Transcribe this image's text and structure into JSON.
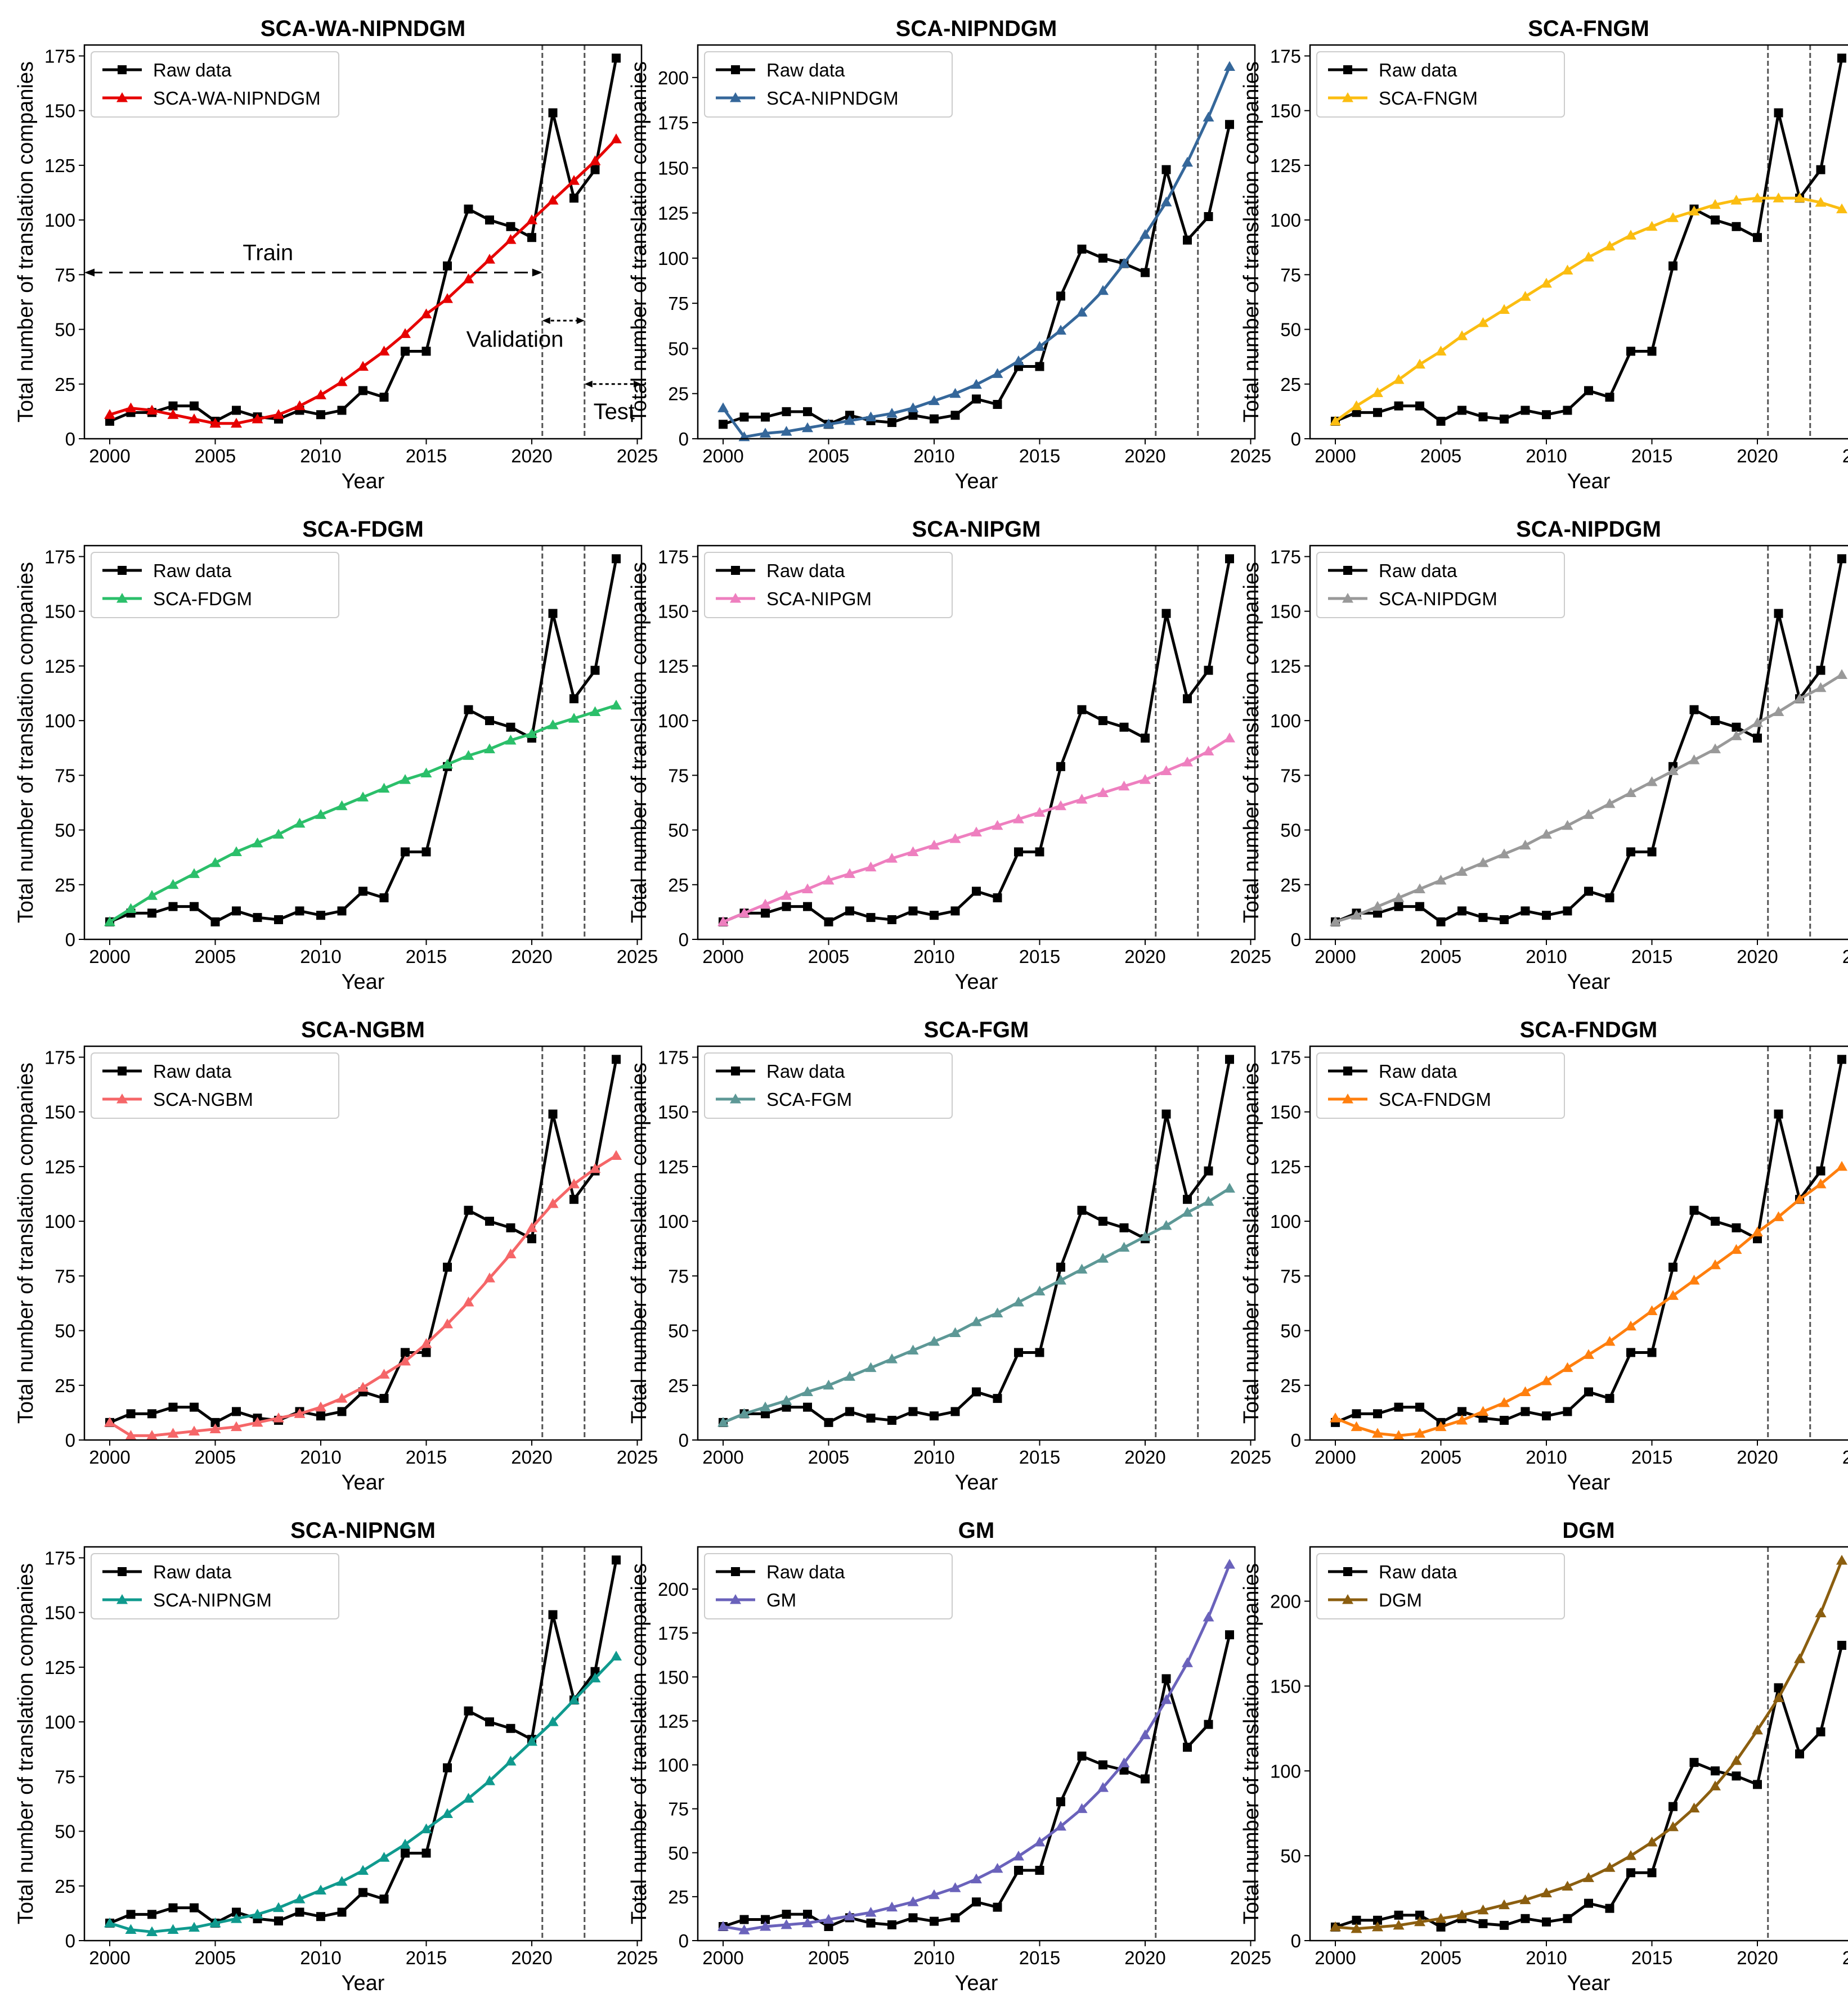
{
  "figure": {
    "xlabel": "Year",
    "ylabel": "Total number of translation companies",
    "years": [
      2000,
      2001,
      2002,
      2003,
      2004,
      2005,
      2006,
      2007,
      2008,
      2009,
      2010,
      2011,
      2012,
      2013,
      2014,
      2015,
      2016,
      2017,
      2018,
      2019,
      2020,
      2021,
      2022,
      2023,
      2024
    ],
    "raw_label": "Raw data",
    "raw_values": [
      8,
      12,
      12,
      15,
      15,
      8,
      13,
      10,
      9,
      13,
      11,
      13,
      22,
      19,
      40,
      40,
      79,
      105,
      100,
      97,
      92,
      149,
      110,
      123,
      174
    ],
    "x_ticks": [
      2000,
      2005,
      2010,
      2015,
      2020,
      2025
    ],
    "annotations": {
      "train": "Train",
      "validation": "Validation",
      "test": "Test"
    }
  },
  "chart_data": [
    {
      "type": "line",
      "title": "SCA-WA-NIPNDGM",
      "legend": "SCA-WA-NIPNDGM",
      "color": "#e60000",
      "ylim": [
        0,
        180
      ],
      "yticks": [
        0,
        25,
        50,
        75,
        100,
        125,
        150,
        175
      ],
      "vlines": [
        2020.5,
        2022.5
      ],
      "annotated": true,
      "values": [
        11,
        14,
        13,
        11,
        9,
        7,
        7,
        9,
        11,
        15,
        20,
        26,
        33,
        40,
        48,
        57,
        64,
        73,
        82,
        91,
        100,
        109,
        118,
        127,
        137
      ]
    },
    {
      "type": "line",
      "title": "SCA-NIPNDGM",
      "legend": "SCA-NIPNDGM",
      "color": "#35679a",
      "ylim": [
        0,
        218
      ],
      "yticks": [
        0,
        25,
        50,
        75,
        100,
        125,
        150,
        175,
        200
      ],
      "vlines": [
        2020.5,
        2022.5
      ],
      "values": [
        17,
        1,
        3,
        4,
        6,
        8,
        10,
        12,
        14,
        17,
        21,
        25,
        30,
        36,
        43,
        51,
        60,
        70,
        82,
        97,
        113,
        131,
        153,
        178,
        206
      ]
    },
    {
      "type": "line",
      "title": "SCA-FNGM",
      "legend": "SCA-FNGM",
      "color": "#fbbd11",
      "ylim": [
        0,
        180
      ],
      "yticks": [
        0,
        25,
        50,
        75,
        100,
        125,
        150,
        175
      ],
      "vlines": [
        2020.5,
        2022.5
      ],
      "values": [
        8,
        15,
        21,
        27,
        34,
        40,
        47,
        53,
        59,
        65,
        71,
        77,
        83,
        88,
        93,
        97,
        101,
        104,
        107,
        109,
        110,
        110,
        110,
        108,
        105
      ]
    },
    {
      "type": "line",
      "title": "SCA-FDGM",
      "legend": "SCA-FDGM",
      "color": "#2bbf6a",
      "ylim": [
        0,
        180
      ],
      "yticks": [
        0,
        25,
        50,
        75,
        100,
        125,
        150,
        175
      ],
      "vlines": [
        2020.5,
        2022.5
      ],
      "values": [
        8,
        14,
        20,
        25,
        30,
        35,
        40,
        44,
        48,
        53,
        57,
        61,
        65,
        69,
        73,
        76,
        80,
        84,
        87,
        91,
        94,
        98,
        101,
        104,
        107
      ]
    },
    {
      "type": "line",
      "title": "SCA-NIPGM",
      "legend": "SCA-NIPGM",
      "color": "#ee7fbf",
      "ylim": [
        0,
        180
      ],
      "yticks": [
        0,
        25,
        50,
        75,
        100,
        125,
        150,
        175
      ],
      "vlines": [
        2020.5,
        2022.5
      ],
      "values": [
        8,
        12,
        16,
        20,
        23,
        27,
        30,
        33,
        37,
        40,
        43,
        46,
        49,
        52,
        55,
        58,
        61,
        64,
        67,
        70,
        73,
        77,
        81,
        86,
        92
      ]
    },
    {
      "type": "line",
      "title": "SCA-NIPDGM",
      "legend": "SCA-NIPDGM",
      "color": "#999999",
      "ylim": [
        0,
        180
      ],
      "yticks": [
        0,
        25,
        50,
        75,
        100,
        125,
        150,
        175
      ],
      "vlines": [
        2020.5,
        2022.5
      ],
      "values": [
        8,
        11,
        15,
        19,
        23,
        27,
        31,
        35,
        39,
        43,
        48,
        52,
        57,
        62,
        67,
        72,
        77,
        82,
        87,
        93,
        99,
        104,
        110,
        115,
        121
      ]
    },
    {
      "type": "line",
      "title": "SCA-NGBM",
      "legend": "SCA-NGBM",
      "color": "#f56668",
      "ylim": [
        0,
        180
      ],
      "yticks": [
        0,
        25,
        50,
        75,
        100,
        125,
        150,
        175
      ],
      "vlines": [
        2020.5,
        2022.5
      ],
      "values": [
        8,
        2,
        2,
        3,
        4,
        5,
        6,
        8,
        10,
        12,
        15,
        19,
        24,
        30,
        36,
        44,
        53,
        63,
        74,
        85,
        97,
        108,
        117,
        124,
        130
      ]
    },
    {
      "type": "line",
      "title": "SCA-FGM",
      "legend": "SCA-FGM",
      "color": "#5d9896",
      "ylim": [
        0,
        180
      ],
      "yticks": [
        0,
        25,
        50,
        75,
        100,
        125,
        150,
        175
      ],
      "vlines": [
        2020.5,
        2022.5
      ],
      "values": [
        8,
        12,
        15,
        18,
        22,
        25,
        29,
        33,
        37,
        41,
        45,
        49,
        54,
        58,
        63,
        68,
        73,
        78,
        83,
        88,
        93,
        98,
        104,
        109,
        115
      ]
    },
    {
      "type": "line",
      "title": "SCA-FNDGM",
      "legend": "SCA-FNDGM",
      "color": "#ff7f0e",
      "ylim": [
        0,
        180
      ],
      "yticks": [
        0,
        25,
        50,
        75,
        100,
        125,
        150,
        175
      ],
      "vlines": [
        2020.5,
        2022.5
      ],
      "values": [
        10,
        6,
        3,
        2,
        3,
        6,
        9,
        13,
        17,
        22,
        27,
        33,
        39,
        45,
        52,
        59,
        66,
        73,
        80,
        87,
        95,
        102,
        110,
        117,
        125
      ]
    },
    {
      "type": "line",
      "title": "SCA-NIPNGM",
      "legend": "SCA-NIPNGM",
      "color": "#0f9a8e",
      "ylim": [
        0,
        180
      ],
      "yticks": [
        0,
        25,
        50,
        75,
        100,
        125,
        150,
        175
      ],
      "vlines": [
        2020.5,
        2022.5
      ],
      "values": [
        8,
        5,
        4,
        5,
        6,
        8,
        10,
        12,
        15,
        19,
        23,
        27,
        32,
        38,
        44,
        51,
        58,
        65,
        73,
        82,
        91,
        100,
        110,
        120,
        130
      ]
    },
    {
      "type": "line",
      "title": "GM",
      "legend": "GM",
      "color": "#6a62bb",
      "ylim": [
        0,
        224
      ],
      "yticks": [
        0,
        25,
        50,
        75,
        100,
        125,
        150,
        175,
        200
      ],
      "vlines": [
        2020.5
      ],
      "values": [
        8,
        6,
        8,
        9,
        10,
        12,
        14,
        16,
        19,
        22,
        26,
        30,
        35,
        41,
        48,
        56,
        65,
        75,
        87,
        101,
        117,
        137,
        158,
        184,
        214
      ]
    },
    {
      "type": "line",
      "title": "DGM",
      "legend": "DGM",
      "color": "#8b5e0f",
      "ylim": [
        0,
        232
      ],
      "yticks": [
        0,
        50,
        100,
        150,
        200
      ],
      "vlines": [
        2020.5
      ],
      "values": [
        8,
        7,
        8,
        9,
        11,
        13,
        15,
        18,
        21,
        24,
        28,
        32,
        37,
        43,
        50,
        58,
        67,
        78,
        91,
        106,
        124,
        143,
        166,
        193,
        224
      ]
    }
  ]
}
